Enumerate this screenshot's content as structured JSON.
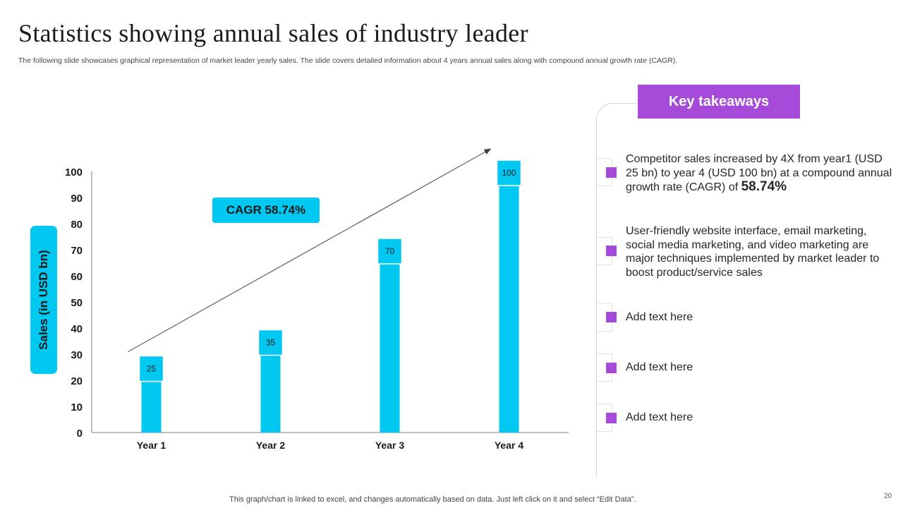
{
  "slide": {
    "title": "Statistics showing annual sales of industry leader",
    "subtitle": "The following slide showcases graphical representation of market leader yearly sales. The slide covers detailed information about 4 years annual sales along with compound annual growth rate (CAGR).",
    "footer": "This graph/chart is linked to excel,  and changes automatically based on data. Just left click on it and select “Edit Data”.",
    "page_number": "20"
  },
  "chart_data": {
    "type": "bar",
    "categories": [
      "Year 1",
      "Year 2",
      "Year 3",
      "Year 4"
    ],
    "values": [
      25,
      35,
      70,
      100
    ],
    "data_labels": [
      "25",
      "35",
      "70",
      "100"
    ],
    "ylabel": "Sales (in USD bn)",
    "xlabel": "",
    "ylim": [
      0,
      100
    ],
    "yticks": [
      "0",
      "10",
      "20",
      "30",
      "40",
      "50",
      "60",
      "70",
      "80",
      "90",
      "100"
    ],
    "annotation": "CAGR  58.74%",
    "bar_color": "#00c8f0"
  },
  "takeaways": {
    "title": "Key takeaways",
    "bullet_color": "#a64bd9",
    "items": [
      {
        "text": "Competitor sales increased by 4X from year1 (USD 25 bn) to year 4 (USD 100 bn) at a compound annual growth rate (CAGR) of ",
        "highlight": "58.74%"
      },
      {
        "text": "User-friendly  website interface, email marketing, social media marketing, and video marketing are major techniques  implemented by market leader to boost product/service  sales"
      },
      {
        "text": "Add text here"
      },
      {
        "text": "Add text here"
      },
      {
        "text": "Add text here"
      }
    ]
  }
}
